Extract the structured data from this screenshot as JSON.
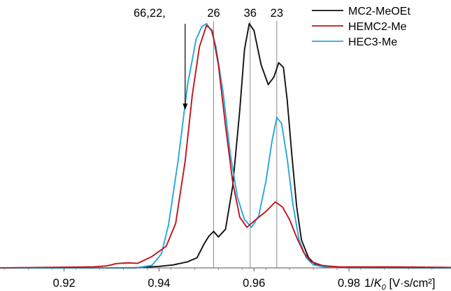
{
  "chart_data": {
    "type": "line",
    "title": "",
    "xlabel_parts": [
      "1/",
      "K",
      "0",
      " [V·s/cm²]"
    ],
    "ylabel": "",
    "xlim": [
      0.9065,
      1.0015
    ],
    "ylim": [
      0,
      1
    ],
    "x_ticks": [
      0.92,
      0.94,
      0.96,
      0.98
    ],
    "x_tick_labels": [
      "0.92",
      "0.94",
      "0.96",
      "0.98"
    ],
    "grid": false,
    "legend_position": "top-right",
    "series": [
      {
        "name": "MC2-MeOEt",
        "color": "#111111",
        "x": [
          0.9065,
          0.93,
          0.935,
          0.94,
          0.943,
          0.946,
          0.948,
          0.9495,
          0.9505,
          0.9515,
          0.9525,
          0.954,
          0.9555,
          0.957,
          0.958,
          0.959,
          0.96,
          0.9615,
          0.963,
          0.9642,
          0.9652,
          0.9662,
          0.967,
          0.968,
          0.969,
          0.97,
          0.9715,
          0.973,
          0.976,
          0.98,
          1.0015
        ],
        "y": [
          0.0,
          0.0,
          0.001,
          0.006,
          0.012,
          0.024,
          0.04,
          0.095,
          0.125,
          0.144,
          0.122,
          0.152,
          0.32,
          0.62,
          0.86,
          0.962,
          0.935,
          0.8,
          0.722,
          0.752,
          0.808,
          0.79,
          0.66,
          0.44,
          0.24,
          0.11,
          0.04,
          0.012,
          0.003,
          0.001,
          0.0
        ]
      },
      {
        "name": "HEMC2-Me",
        "color": "#c0141d",
        "x": [
          0.9065,
          0.926,
          0.929,
          0.931,
          0.9335,
          0.9355,
          0.9385,
          0.9415,
          0.9435,
          0.9455,
          0.947,
          0.9485,
          0.95,
          0.9512,
          0.9525,
          0.954,
          0.9555,
          0.957,
          0.9585,
          0.9605,
          0.9625,
          0.9645,
          0.966,
          0.9675,
          0.969,
          0.9705,
          0.972,
          0.9745,
          0.978,
          0.982,
          0.99,
          1.0015
        ],
        "y": [
          0.0,
          0.004,
          0.008,
          0.017,
          0.02,
          0.018,
          0.045,
          0.085,
          0.175,
          0.42,
          0.68,
          0.87,
          0.955,
          0.935,
          0.8,
          0.56,
          0.34,
          0.2,
          0.16,
          0.192,
          0.222,
          0.26,
          0.24,
          0.19,
          0.12,
          0.06,
          0.025,
          0.009,
          0.004,
          0.004,
          0.004,
          0.002
        ]
      },
      {
        "name": "HEC3-Me",
        "color": "#26a7de",
        "x": [
          0.9065,
          0.935,
          0.9385,
          0.9405,
          0.942,
          0.944,
          0.946,
          0.9478,
          0.949,
          0.95,
          0.951,
          0.952,
          0.9535,
          0.955,
          0.9565,
          0.958,
          0.9595,
          0.961,
          0.9625,
          0.9638,
          0.9648,
          0.9658,
          0.967,
          0.9682,
          0.9695,
          0.971,
          0.9725,
          0.975,
          0.98,
          1.0015
        ],
        "y": [
          0.0,
          0.0,
          0.01,
          0.055,
          0.17,
          0.42,
          0.72,
          0.9,
          0.95,
          0.962,
          0.935,
          0.87,
          0.69,
          0.45,
          0.28,
          0.19,
          0.16,
          0.205,
          0.34,
          0.5,
          0.592,
          0.57,
          0.43,
          0.25,
          0.11,
          0.04,
          0.012,
          0.003,
          0.001,
          0.0
        ]
      }
    ],
    "reference_lines": [
      {
        "x": 0.9515,
        "label": "26"
      },
      {
        "x": 0.9592,
        "label": "36"
      },
      {
        "x": 0.9648,
        "label": "23"
      }
    ],
    "annotations": [
      {
        "text": "66,22,",
        "arrow_x": 0.9455
      }
    ]
  }
}
